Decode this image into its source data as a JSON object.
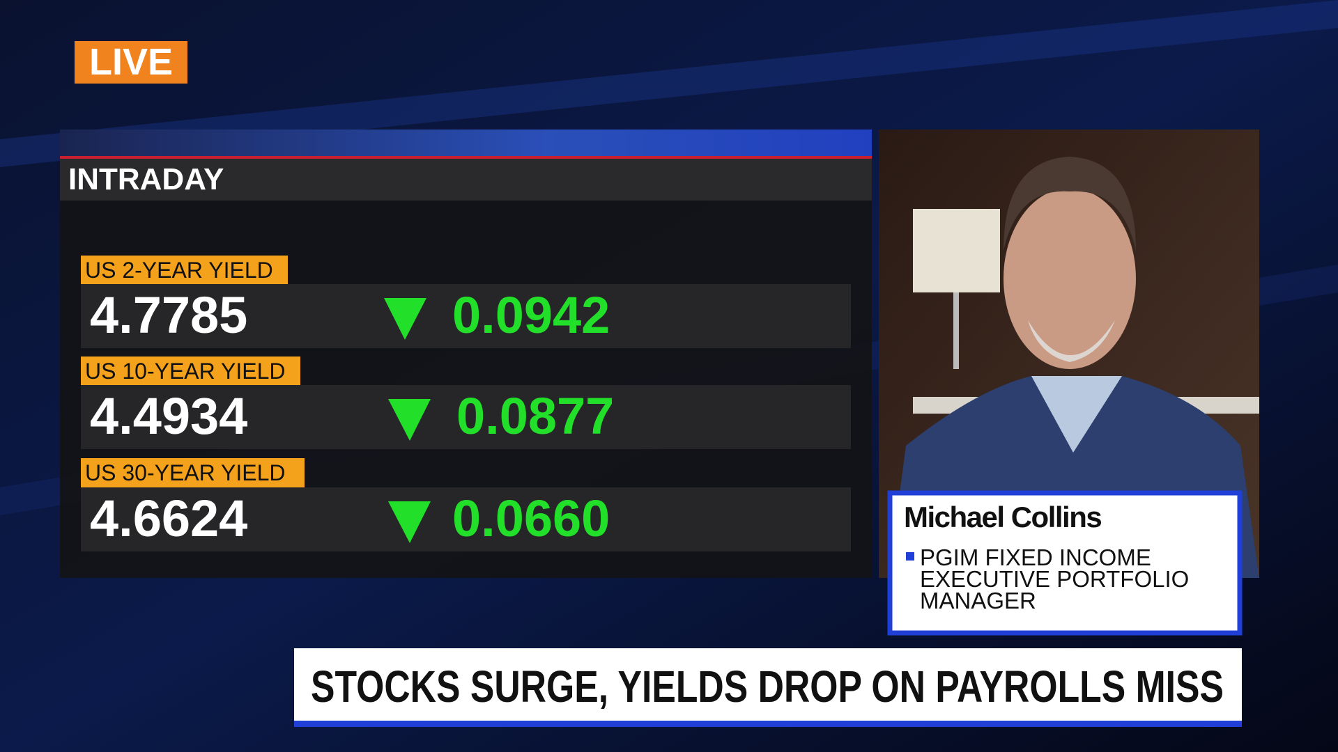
{
  "live_badge": "LIVE",
  "panel": {
    "title": "INTRADAY",
    "rows": [
      {
        "label": "US 2-YEAR YIELD",
        "value": "4.7785",
        "change": "0.0942"
      },
      {
        "label": "US 10-YEAR YIELD",
        "value": "4.4934",
        "change": "0.0877"
      },
      {
        "label": "US 30-YEAR YIELD",
        "value": "4.6624",
        "change": "0.0660"
      }
    ]
  },
  "guest": {
    "name": "Michael Collins",
    "title_lines": [
      "PGIM FIXED INCOME",
      "EXECUTIVE PORTFOLIO",
      "MANAGER"
    ]
  },
  "headline": "STOCKS SURGE, YIELDS DROP ON PAYROLLS MISS"
}
